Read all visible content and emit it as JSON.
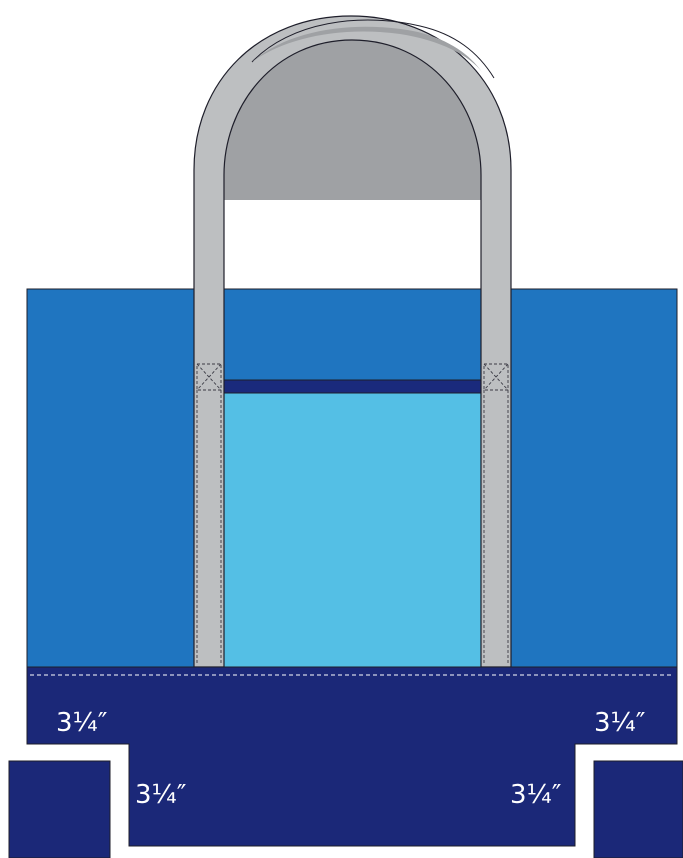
{
  "diagram": {
    "colors": {
      "bag_body": "#1f75c0",
      "pocket": "#54bfe5",
      "pocket_band": "#1a2a7c",
      "bottom_panel": "#1b2878",
      "strap": "#bdbfc1",
      "strap_inner": "#9fa1a4",
      "outline": "#1e1e2a",
      "stitch": "#ffffff"
    },
    "labels": {
      "top_left_cut": "3¼″",
      "top_right_cut": "3¼″",
      "lower_left_cut": "3¼″",
      "lower_right_cut": "3¼″"
    }
  }
}
